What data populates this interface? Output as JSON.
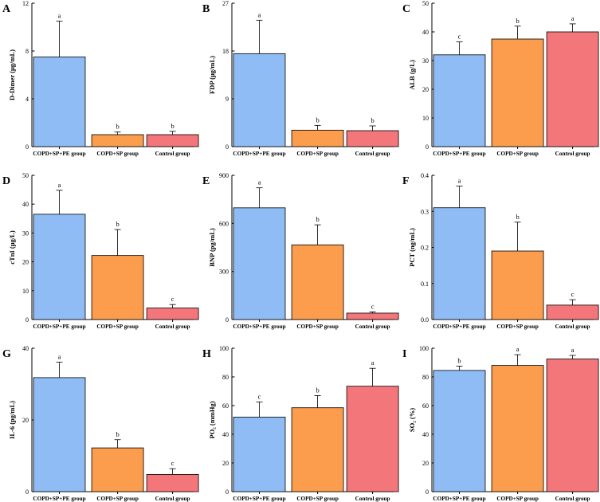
{
  "figure": {
    "colors": [
      "#8fbcf5",
      "#fb9d4d",
      "#f3767a"
    ]
  },
  "chart_data": [
    {
      "letter": "A",
      "type": "bar",
      "ylabel": "D-Dimer (μg/mL)",
      "ylim": [
        0,
        12
      ],
      "ticks": [
        "0",
        "4",
        "8",
        "12"
      ],
      "categories": [
        "COPD+SP+PE group",
        "COPD+SP group",
        "Control group"
      ],
      "values": [
        7.5,
        1.0,
        1.0
      ],
      "errors": [
        3.0,
        0.22,
        0.28
      ],
      "sig": [
        "a",
        "b",
        "b"
      ]
    },
    {
      "letter": "B",
      "type": "bar",
      "ylabel": "FDP (μg/mL)",
      "ylim": [
        0,
        27
      ],
      "ticks": [
        "0",
        "9",
        "18",
        "27"
      ],
      "categories": [
        "COPD+SP+PE group",
        "COPD+SP group",
        "Control group"
      ],
      "values": [
        17.5,
        3.1,
        3.0
      ],
      "errors": [
        6.3,
        0.9,
        0.9
      ],
      "sig": [
        "a",
        "b",
        "b"
      ]
    },
    {
      "letter": "C",
      "type": "bar",
      "ylabel": "ALB (g/L)",
      "ylim": [
        0,
        50
      ],
      "ticks": [
        "0",
        "10",
        "20",
        "30",
        "40",
        "50"
      ],
      "categories": [
        "COPD+SP+PE group",
        "COPD+SP group",
        "Control group"
      ],
      "values": [
        32.0,
        37.5,
        40.0
      ],
      "errors": [
        4.5,
        4.5,
        2.8
      ],
      "sig": [
        "c",
        "b",
        "a"
      ]
    },
    {
      "letter": "D",
      "type": "bar",
      "ylabel": "cTnI (μg/L)",
      "ylim": [
        0,
        50
      ],
      "ticks": [
        "0",
        "10",
        "20",
        "30",
        "40",
        "50"
      ],
      "categories": [
        "COPD+SP+PE group",
        "COPD+SP group",
        "Control group"
      ],
      "values": [
        36.5,
        22.2,
        4.0
      ],
      "errors": [
        8.3,
        9.0,
        1.2
      ],
      "sig": [
        "a",
        "b",
        "c"
      ]
    },
    {
      "letter": "E",
      "type": "bar",
      "ylabel": "BNP (pg/mL)",
      "ylim": [
        0,
        900
      ],
      "ticks": [
        "0",
        "300",
        "600",
        "900"
      ],
      "categories": [
        "COPD+SP+PE group",
        "COPD+SP group",
        "Control group"
      ],
      "values": [
        697,
        466,
        40
      ],
      "errors": [
        125,
        125,
        8
      ],
      "sig": [
        "a",
        "b",
        "c"
      ]
    },
    {
      "letter": "F",
      "type": "bar",
      "ylabel": "PCT (ng/mL)",
      "ylim": [
        0,
        0.4
      ],
      "ticks": [
        "0.0",
        "0.1",
        "0.2",
        "0.3",
        "0.4"
      ],
      "categories": [
        "COPD+SP+PE group",
        "COPD+SP group",
        "Control group"
      ],
      "values": [
        0.31,
        0.19,
        0.04
      ],
      "errors": [
        0.06,
        0.08,
        0.015
      ],
      "sig": [
        "a",
        "b",
        "c"
      ]
    },
    {
      "letter": "G",
      "type": "bar",
      "ylabel": "IL-6 (pg/mL)",
      "ylim": [
        0,
        40
      ],
      "ticks": [
        "0",
        "20",
        "40"
      ],
      "categories": [
        "COPD+SP+PE group",
        "COPD+SP group",
        "Control group"
      ],
      "values": [
        31.8,
        12.2,
        4.8
      ],
      "errors": [
        4.3,
        2.3,
        1.6
      ],
      "sig": [
        "a",
        "b",
        "c"
      ]
    },
    {
      "letter": "H",
      "type": "bar",
      "ylabel": "PO₂ (mmHg)",
      "ylim": [
        0,
        100
      ],
      "ticks": [
        "0",
        "20",
        "40",
        "60",
        "80",
        "100"
      ],
      "categories": [
        "COPD+SP+PE group",
        "COPD+SP group",
        "Control group"
      ],
      "values": [
        52,
        58.5,
        73.5
      ],
      "errors": [
        10.5,
        8.5,
        12.5
      ],
      "sig": [
        "c",
        "b",
        "a"
      ]
    },
    {
      "letter": "I",
      "type": "bar",
      "ylabel": "SO₂ (%)",
      "ylim": [
        0,
        100
      ],
      "ticks": [
        "0",
        "20",
        "40",
        "60",
        "80",
        "100"
      ],
      "categories": [
        "COPD+SP+PE group",
        "COPD+SP group",
        "Control group"
      ],
      "values": [
        84.5,
        88,
        92.5
      ],
      "errors": [
        3,
        7.5,
        2.5
      ],
      "sig": [
        "b",
        "a",
        "a"
      ]
    }
  ]
}
